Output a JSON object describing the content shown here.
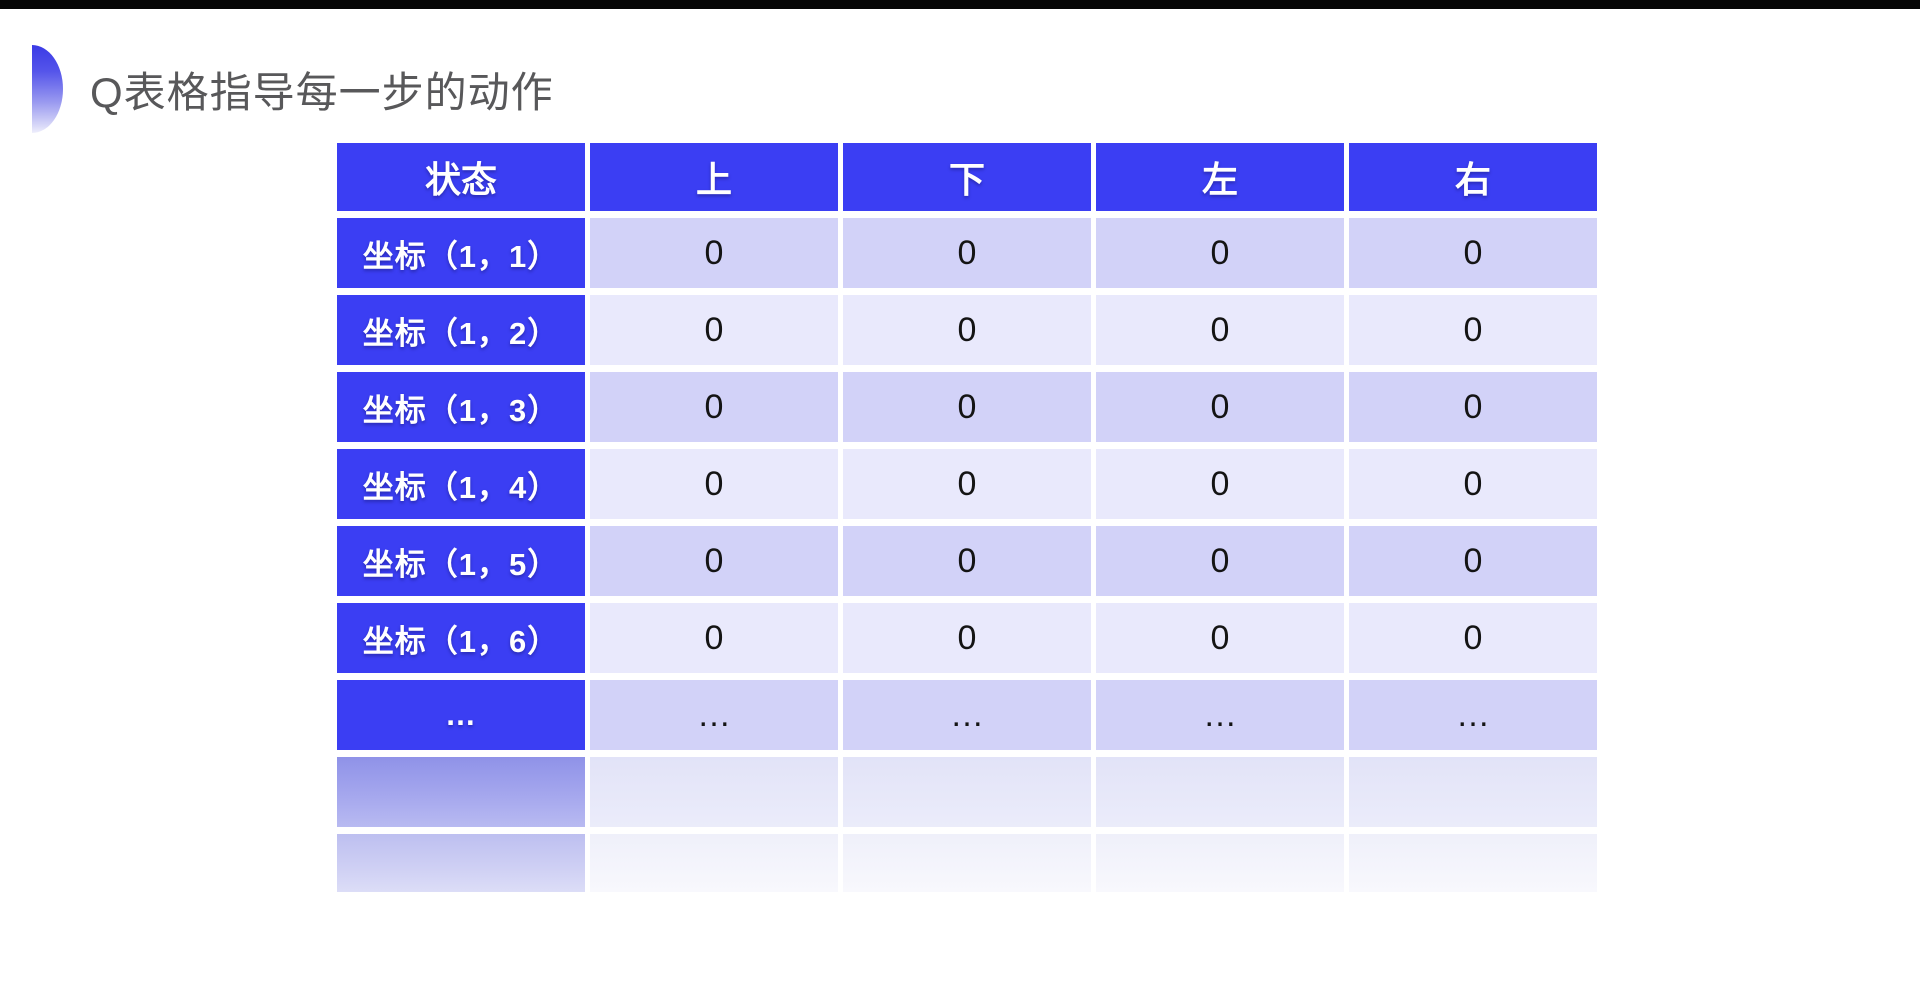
{
  "slide": {
    "title": "Q表格指导每一步的动作"
  },
  "table": {
    "headers": [
      "状态",
      "上",
      "下",
      "左",
      "右"
    ],
    "rows": [
      {
        "state": "坐标（1，1）",
        "values": [
          "0",
          "0",
          "0",
          "0"
        ]
      },
      {
        "state": "坐标（1，2）",
        "values": [
          "0",
          "0",
          "0",
          "0"
        ]
      },
      {
        "state": "坐标（1，3）",
        "values": [
          "0",
          "0",
          "0",
          "0"
        ]
      },
      {
        "state": "坐标（1，4）",
        "values": [
          "0",
          "0",
          "0",
          "0"
        ]
      },
      {
        "state": "坐标（1，5）",
        "values": [
          "0",
          "0",
          "0",
          "0"
        ]
      },
      {
        "state": "坐标（1，6）",
        "values": [
          "0",
          "0",
          "0",
          "0"
        ]
      },
      {
        "state": "…",
        "values": [
          "…",
          "…",
          "…",
          "…"
        ]
      }
    ]
  },
  "colors": {
    "accent_blue": "#3b3ef3",
    "row_odd": "#d2d2f8",
    "row_even": "#e9e9fc",
    "title_text": "#58585a",
    "letterbox": "#050505"
  }
}
